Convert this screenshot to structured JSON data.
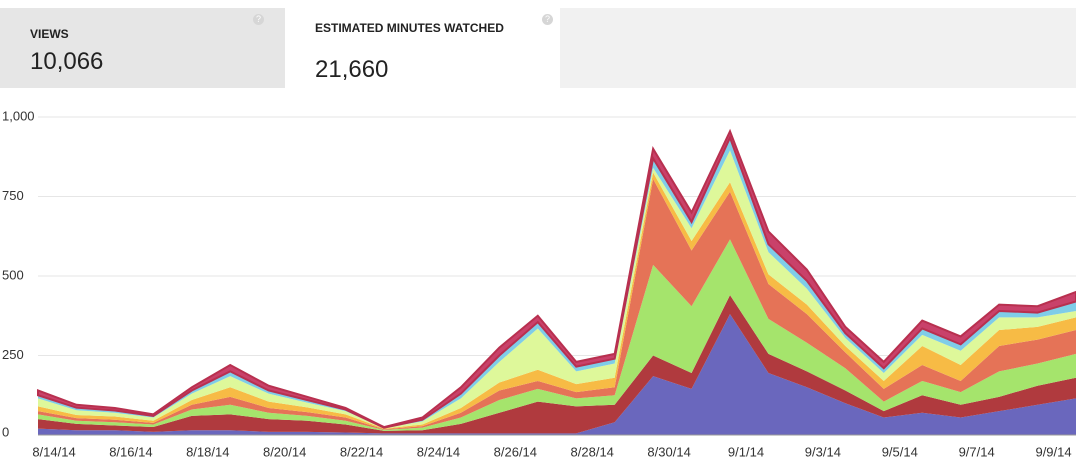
{
  "tabs": [
    {
      "label": "VIEWS",
      "value": "10,066"
    },
    {
      "label": "ESTIMATED MINUTES WATCHED",
      "value": "21,660"
    }
  ],
  "chart_data": {
    "type": "stacked_area",
    "categories": [
      "8/14/14",
      null,
      "8/16/14",
      null,
      "8/18/14",
      null,
      "8/20/14",
      null,
      "8/22/14",
      null,
      "8/24/14",
      null,
      "8/26/14",
      null,
      "8/28/14",
      null,
      "8/30/14",
      null,
      "9/1/14",
      null,
      "9/3/14",
      null,
      "9/5/14",
      null,
      "9/7/14",
      null,
      "9/9/14",
      null
    ],
    "series": [
      {
        "color": "#6a67bd",
        "values": [
          20,
          15,
          15,
          10,
          15,
          15,
          10,
          10,
          8,
          5,
          5,
          5,
          5,
          5,
          5,
          40,
          185,
          145,
          380,
          195,
          150,
          100,
          55,
          70,
          55,
          75,
          95,
          115
        ]
      },
      {
        "color": "#b03a3e",
        "values": [
          30,
          20,
          15,
          15,
          45,
          50,
          40,
          35,
          25,
          8,
          10,
          30,
          65,
          100,
          85,
          55,
          65,
          50,
          60,
          60,
          50,
          40,
          20,
          55,
          40,
          45,
          60,
          65
        ]
      },
      {
        "color": "#a5e46c",
        "values": [
          15,
          10,
          10,
          8,
          20,
          30,
          20,
          15,
          12,
          3,
          8,
          20,
          40,
          40,
          25,
          30,
          285,
          210,
          175,
          110,
          90,
          70,
          30,
          45,
          40,
          80,
          70,
          75
        ]
      },
      {
        "color": "#e57357",
        "values": [
          10,
          8,
          8,
          5,
          15,
          25,
          15,
          12,
          10,
          2,
          5,
          15,
          30,
          25,
          20,
          25,
          270,
          175,
          150,
          110,
          90,
          50,
          40,
          50,
          35,
          80,
          75,
          75
        ]
      },
      {
        "color": "#f7bb45",
        "values": [
          15,
          10,
          10,
          7,
          15,
          30,
          20,
          15,
          10,
          2,
          5,
          15,
          25,
          35,
          25,
          30,
          20,
          30,
          30,
          30,
          30,
          20,
          25,
          60,
          50,
          50,
          40,
          40
        ]
      },
      {
        "color": "#def89a",
        "values": [
          25,
          15,
          12,
          10,
          20,
          35,
          25,
          15,
          10,
          2,
          10,
          30,
          65,
          130,
          40,
          45,
          15,
          40,
          100,
          70,
          50,
          25,
          25,
          35,
          45,
          40,
          30,
          20
        ]
      },
      {
        "color": "#7fcde8",
        "values": [
          10,
          8,
          7,
          5,
          10,
          15,
          10,
          8,
          5,
          1,
          5,
          15,
          20,
          20,
          15,
          15,
          30,
          20,
          40,
          25,
          25,
          15,
          15,
          20,
          20,
          20,
          15,
          30
        ]
      },
      {
        "color": "#c9416a",
        "values": [
          15,
          9,
          8,
          5,
          10,
          20,
          15,
          10,
          5,
          2,
          7,
          20,
          25,
          20,
          15,
          15,
          30,
          30,
          20,
          40,
          35,
          20,
          20,
          25,
          25,
          20,
          20,
          30
        ]
      }
    ],
    "ylim": [
      0,
      1000
    ],
    "yticks": [
      0,
      250,
      500,
      750,
      {
        "value": 1000,
        "label": "1,000"
      }
    ],
    "grid": true
  }
}
